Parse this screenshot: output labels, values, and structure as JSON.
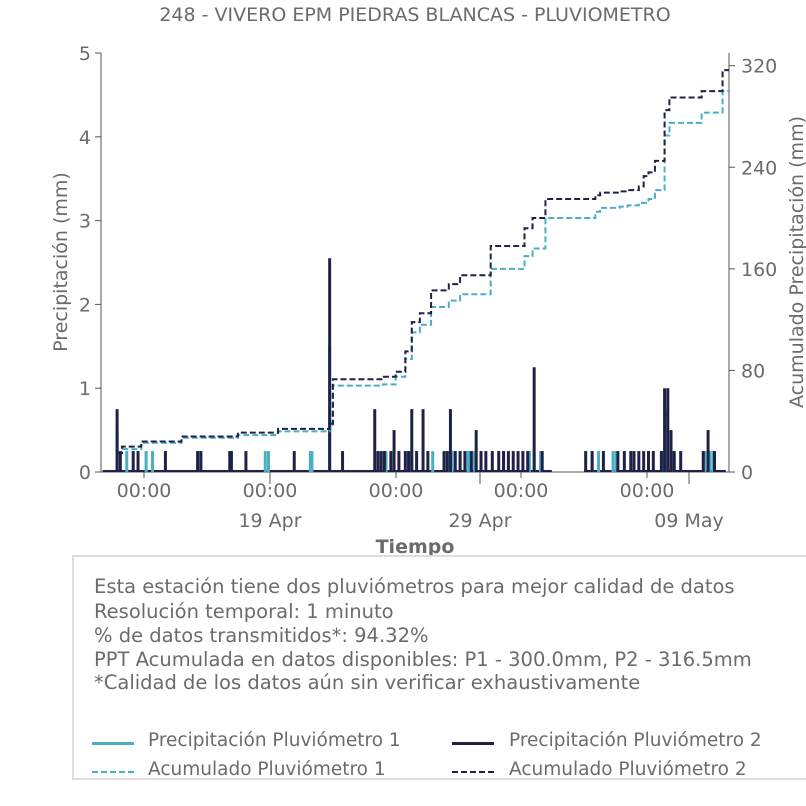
{
  "chart_data": {
    "type": "bar",
    "title": "248 - VIVERO EPM PIEDRAS BLANCAS - PLUVIOMETRO",
    "xlabel": "Tiempo",
    "ylabel": "Precipitación (mm)",
    "y2label": "Acumulado Precipitación (mm)",
    "ylim": [
      0,
      5
    ],
    "y2lim": [
      0,
      330
    ],
    "yticks": [
      "0",
      "1",
      "2",
      "3",
      "4",
      "5"
    ],
    "y2ticks": [
      "0",
      "80",
      "160",
      "240",
      "320"
    ],
    "x_tick_labels": [
      "00:00",
      "00:00",
      "00:00",
      "00:00",
      "00:00"
    ],
    "x_major_labels": [
      "19 Apr",
      "29 Apr",
      "09 May"
    ],
    "colors": {
      "p1": "#4bafc4",
      "p2": "#1f2147"
    },
    "series": [
      {
        "name": "Precipitación Pluviómetro 1",
        "kind": "bar",
        "x": [
          0.0,
          0.6,
          1.8,
          2.2,
          5.2,
          7.0,
          9.2,
          9.4,
          12.0,
          12.1,
          13.2,
          16.6,
          16.7,
          18.2,
          18.3,
          19.6,
          20.6,
          20.8,
          21.3,
          21.8,
          21.9,
          22.2,
          24.0,
          25.6,
          25.9,
          26.3,
          29.5,
          29.9,
          30.8,
          31.0,
          33.9,
          34.1,
          34.5,
          36.5,
          36.8,
          37.0
        ],
        "values": [
          0.5,
          0.25,
          0.25,
          0.25,
          0.25,
          0.25,
          0.25,
          0.25,
          0.25,
          0.25,
          1.5,
          0.25,
          0.25,
          0.25,
          0.25,
          0.25,
          0.25,
          0.25,
          0.25,
          0.25,
          0.25,
          0.25,
          0.25,
          0.25,
          0.25,
          0.25,
          0.25,
          0.25,
          0.25,
          0.25,
          0.25,
          0.75,
          0.25,
          0.25,
          0.25,
          0.25
        ]
      },
      {
        "name": "Precipitación Pluviómetro 2",
        "kind": "bar",
        "x": [
          0.0,
          0.2,
          1.0,
          1.3,
          3.0,
          5.0,
          5.2,
          7.0,
          7.1,
          8.0,
          11.0,
          13.2,
          14.0,
          16.0,
          16.2,
          16.4,
          16.6,
          17.0,
          17.2,
          17.5,
          17.9,
          18.1,
          18.3,
          18.6,
          19.0,
          19.3,
          20.3,
          20.5,
          20.7,
          21.0,
          21.3,
          21.6,
          22.0,
          22.3,
          22.6,
          22.9,
          23.3,
          23.7,
          24.0,
          24.3,
          24.6,
          24.9,
          25.2,
          25.5,
          25.9,
          26.4,
          29.1,
          29.5,
          30.2,
          31.1,
          31.5,
          31.9,
          32.1,
          32.4,
          32.7,
          33.0,
          33.3,
          33.8,
          34.0,
          34.2,
          34.4,
          34.6,
          35.0,
          36.4,
          36.7,
          37.1
        ],
        "values": [
          0.75,
          0.25,
          0.25,
          0.25,
          0.25,
          0.25,
          0.25,
          0.25,
          0.25,
          0.25,
          0.25,
          2.55,
          0.25,
          0.75,
          0.25,
          0.25,
          0.25,
          0.25,
          0.5,
          0.25,
          0.25,
          0.25,
          0.75,
          0.25,
          0.75,
          0.25,
          0.25,
          0.25,
          0.75,
          0.25,
          0.25,
          0.25,
          0.25,
          0.5,
          0.25,
          0.25,
          0.25,
          0.25,
          0.25,
          0.25,
          0.25,
          0.25,
          0.25,
          0.25,
          1.25,
          0.25,
          0.25,
          0.25,
          0.25,
          0.25,
          0.25,
          0.25,
          0.25,
          0.25,
          0.25,
          0.25,
          0.25,
          0.25,
          1.0,
          1.0,
          0.5,
          0.25,
          0.25,
          0.25,
          0.5,
          0.25
        ]
      },
      {
        "name": "Acumulado Pluviómetro 1",
        "kind": "step",
        "x": [
          0.0,
          0.3,
          1.5,
          4.0,
          7.5,
          10.0,
          13.2,
          13.4,
          16.5,
          17.3,
          17.9,
          18.3,
          18.8,
          19.5,
          20.6,
          21.3,
          23.2,
          25.3,
          25.8,
          26.6,
          29.7,
          30.0,
          30.5,
          31.2,
          31.7,
          32.4,
          32.7,
          33.0,
          33.4,
          34.0,
          34.3,
          36.3,
          37.6
        ],
        "values": [
          15,
          18,
          23,
          27,
          29,
          32,
          35,
          68,
          69,
          75,
          89,
          110,
          116,
          130,
          135,
          140,
          160,
          170,
          176,
          200,
          205,
          208,
          208,
          209,
          210,
          212,
          212,
          215,
          222,
          265,
          275,
          283,
          300
        ]
      },
      {
        "name": "Acumulado Pluviómetro 2",
        "kind": "step",
        "x": [
          0.0,
          0.3,
          1.5,
          4.0,
          7.5,
          10.0,
          13.2,
          13.4,
          16.5,
          17.3,
          17.9,
          18.3,
          18.8,
          19.5,
          20.6,
          21.3,
          23.2,
          25.3,
          25.8,
          26.6,
          29.7,
          30.0,
          30.5,
          31.2,
          31.7,
          32.4,
          32.7,
          33.0,
          33.4,
          34.0,
          34.3,
          36.3,
          37.6
        ],
        "values": [
          15,
          20,
          24,
          28,
          31,
          34,
          38,
          73,
          75,
          79,
          95,
          118,
          125,
          143,
          148,
          155,
          178,
          192,
          200,
          215,
          218,
          220,
          220,
          221,
          222,
          225,
          233,
          236,
          245,
          285,
          295,
          300,
          316.5
        ]
      }
    ],
    "legend_placement": "bottom"
  },
  "info": {
    "lines": [
      "Esta estación tiene dos pluviómetros para mejor calidad de datos",
      "Resolución temporal: 1 minuto",
      "% de datos transmitidos*: 94.32%",
      "PPT Acumulada en datos disponibles: P1 - 300.0mm, P2 - 316.5mm",
      "*Calidad de los datos aún sin verificar exhaustivamente"
    ]
  },
  "legend": {
    "p1_bar": "Precipitación Pluviómetro 1",
    "p2_bar": "Precipitación Pluviómetro 2",
    "p1_acc": "Acumulado Pluviómetro 1",
    "p2_acc": "Acumulado Pluviómetro 2"
  }
}
